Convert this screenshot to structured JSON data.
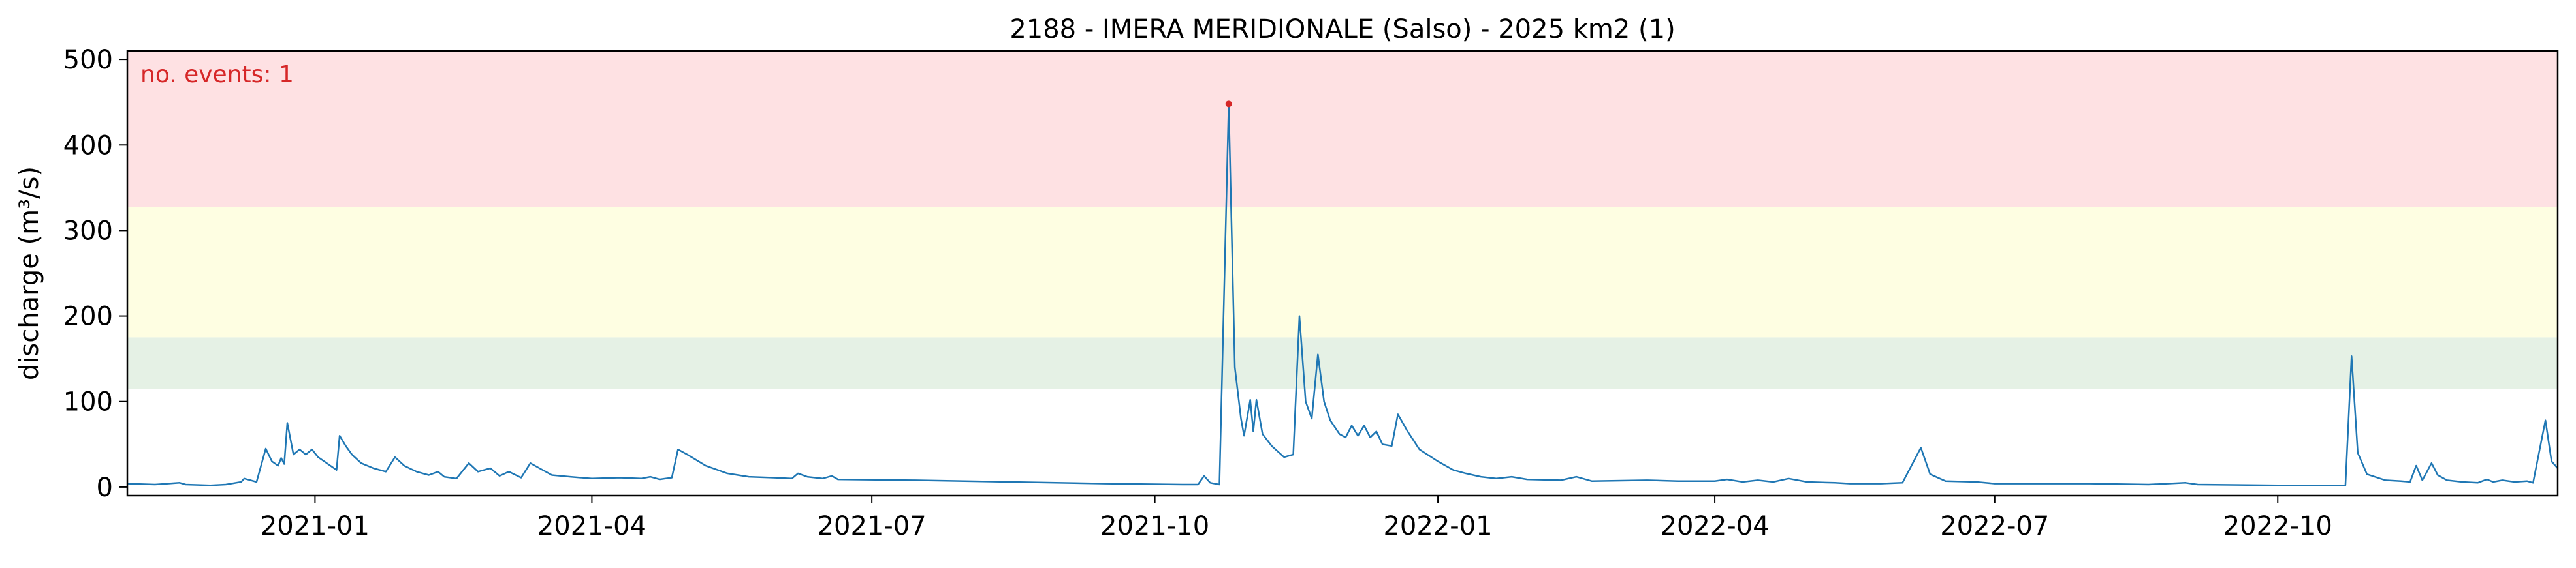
{
  "chart_data": {
    "type": "line",
    "title": "2188 - IMERA MERIDIONALE (Salso) - 2025 km2 (1)",
    "xlabel": "",
    "ylabel": "discharge (m³/s)",
    "annotation": "no. events: 1",
    "xlim": [
      "2020-11-01",
      "2022-12-31"
    ],
    "ylim": [
      -10,
      510
    ],
    "x_ticks": [
      "2021-01",
      "2021-04",
      "2021-07",
      "2021-10",
      "2022-01",
      "2022-04",
      "2022-07",
      "2022-10"
    ],
    "x_tick_dates": [
      "2021-01-01",
      "2021-04-01",
      "2021-07-01",
      "2021-10-01",
      "2022-01-01",
      "2022-04-01",
      "2022-07-01",
      "2022-10-01"
    ],
    "y_ticks": [
      0,
      100,
      200,
      300,
      400,
      500
    ],
    "bands": [
      {
        "from": 115,
        "to": 175,
        "color": "#e5f1e5"
      },
      {
        "from": 175,
        "to": 327,
        "color": "#fefee2"
      },
      {
        "from": 327,
        "to": 510,
        "color": "#fee1e3"
      }
    ],
    "event_points": [
      {
        "x": "2021-10-25",
        "y": 448
      }
    ],
    "line_color": "#1f77b4",
    "event_color": "#d62728",
    "series": [
      {
        "points": [
          [
            "2020-11-01",
            4
          ],
          [
            "2020-11-10",
            3
          ],
          [
            "2020-11-18",
            5
          ],
          [
            "2020-11-20",
            3
          ],
          [
            "2020-11-28",
            2
          ],
          [
            "2020-12-03",
            3
          ],
          [
            "2020-12-08",
            6
          ],
          [
            "2020-12-09",
            10
          ],
          [
            "2020-12-13",
            6
          ],
          [
            "2020-12-16",
            45
          ],
          [
            "2020-12-18",
            30
          ],
          [
            "2020-12-20",
            25
          ],
          [
            "2020-12-21",
            34
          ],
          [
            "2020-12-22",
            27
          ],
          [
            "2020-12-23",
            75
          ],
          [
            "2020-12-25",
            38
          ],
          [
            "2020-12-27",
            44
          ],
          [
            "2020-12-29",
            38
          ],
          [
            "2020-12-31",
            44
          ],
          [
            "2021-01-02",
            35
          ],
          [
            "2021-01-04",
            30
          ],
          [
            "2021-01-06",
            25
          ],
          [
            "2021-01-08",
            20
          ],
          [
            "2021-01-09",
            60
          ],
          [
            "2021-01-11",
            48
          ],
          [
            "2021-01-13",
            38
          ],
          [
            "2021-01-16",
            28
          ],
          [
            "2021-01-20",
            22
          ],
          [
            "2021-01-24",
            18
          ],
          [
            "2021-01-27",
            35
          ],
          [
            "2021-01-30",
            25
          ],
          [
            "2021-02-03",
            18
          ],
          [
            "2021-02-07",
            14
          ],
          [
            "2021-02-10",
            18
          ],
          [
            "2021-02-12",
            12
          ],
          [
            "2021-02-16",
            10
          ],
          [
            "2021-02-20",
            28
          ],
          [
            "2021-02-23",
            18
          ],
          [
            "2021-02-27",
            22
          ],
          [
            "2021-03-02",
            13
          ],
          [
            "2021-03-05",
            18
          ],
          [
            "2021-03-09",
            11
          ],
          [
            "2021-03-12",
            28
          ],
          [
            "2021-03-16",
            20
          ],
          [
            "2021-03-19",
            14
          ],
          [
            "2021-03-25",
            12
          ],
          [
            "2021-04-01",
            10
          ],
          [
            "2021-04-10",
            11
          ],
          [
            "2021-04-17",
            10
          ],
          [
            "2021-04-20",
            12
          ],
          [
            "2021-04-23",
            9
          ],
          [
            "2021-04-27",
            11
          ],
          [
            "2021-04-29",
            44
          ],
          [
            "2021-05-02",
            38
          ],
          [
            "2021-05-08",
            25
          ],
          [
            "2021-05-15",
            16
          ],
          [
            "2021-05-22",
            12
          ],
          [
            "2021-05-30",
            11
          ],
          [
            "2021-06-05",
            10
          ],
          [
            "2021-06-07",
            16
          ],
          [
            "2021-06-10",
            12
          ],
          [
            "2021-06-15",
            10
          ],
          [
            "2021-06-18",
            13
          ],
          [
            "2021-06-20",
            9
          ],
          [
            "2021-07-15",
            8
          ],
          [
            "2021-08-15",
            6
          ],
          [
            "2021-09-15",
            4
          ],
          [
            "2021-10-10",
            3
          ],
          [
            "2021-10-15",
            3
          ],
          [
            "2021-10-17",
            13
          ],
          [
            "2021-10-19",
            5
          ],
          [
            "2021-10-22",
            3
          ],
          [
            "2021-10-25",
            448
          ],
          [
            "2021-10-27",
            140
          ],
          [
            "2021-10-29",
            80
          ],
          [
            "2021-10-30",
            60
          ],
          [
            "2021-11-01",
            102
          ],
          [
            "2021-11-02",
            65
          ],
          [
            "2021-11-03",
            102
          ],
          [
            "2021-11-05",
            62
          ],
          [
            "2021-11-08",
            48
          ],
          [
            "2021-11-12",
            35
          ],
          [
            "2021-11-15",
            38
          ],
          [
            "2021-11-17",
            200
          ],
          [
            "2021-11-19",
            100
          ],
          [
            "2021-11-21",
            80
          ],
          [
            "2021-11-23",
            155
          ],
          [
            "2021-11-25",
            100
          ],
          [
            "2021-11-27",
            78
          ],
          [
            "2021-11-30",
            62
          ],
          [
            "2021-12-02",
            58
          ],
          [
            "2021-12-04",
            72
          ],
          [
            "2021-12-06",
            60
          ],
          [
            "2021-12-08",
            72
          ],
          [
            "2021-12-10",
            58
          ],
          [
            "2021-12-12",
            65
          ],
          [
            "2021-12-14",
            50
          ],
          [
            "2021-12-17",
            48
          ],
          [
            "2021-12-19",
            85
          ],
          [
            "2021-12-22",
            66
          ],
          [
            "2021-12-26",
            44
          ],
          [
            "2022-01-01",
            30
          ],
          [
            "2022-01-06",
            20
          ],
          [
            "2022-01-10",
            16
          ],
          [
            "2022-01-15",
            12
          ],
          [
            "2022-01-20",
            10
          ],
          [
            "2022-01-25",
            12
          ],
          [
            "2022-01-30",
            9
          ],
          [
            "2022-02-10",
            8
          ],
          [
            "2022-02-15",
            12
          ],
          [
            "2022-02-20",
            7
          ],
          [
            "2022-03-10",
            8
          ],
          [
            "2022-03-20",
            7
          ],
          [
            "2022-04-01",
            7
          ],
          [
            "2022-04-05",
            9
          ],
          [
            "2022-04-10",
            6
          ],
          [
            "2022-04-15",
            8
          ],
          [
            "2022-04-20",
            6
          ],
          [
            "2022-04-25",
            10
          ],
          [
            "2022-05-01",
            6
          ],
          [
            "2022-05-10",
            5
          ],
          [
            "2022-05-15",
            4
          ],
          [
            "2022-05-25",
            4
          ],
          [
            "2022-06-01",
            5
          ],
          [
            "2022-06-07",
            46
          ],
          [
            "2022-06-10",
            15
          ],
          [
            "2022-06-15",
            7
          ],
          [
            "2022-06-25",
            6
          ],
          [
            "2022-07-01",
            4
          ],
          [
            "2022-08-01",
            4
          ],
          [
            "2022-08-20",
            3
          ],
          [
            "2022-09-01",
            5
          ],
          [
            "2022-09-05",
            3
          ],
          [
            "2022-10-01",
            2
          ],
          [
            "2022-10-10",
            2
          ],
          [
            "2022-10-23",
            2
          ],
          [
            "2022-10-25",
            153
          ],
          [
            "2022-10-27",
            40
          ],
          [
            "2022-10-30",
            15
          ],
          [
            "2022-11-05",
            8
          ],
          [
            "2022-11-10",
            7
          ],
          [
            "2022-11-13",
            6
          ],
          [
            "2022-11-15",
            25
          ],
          [
            "2022-11-17",
            8
          ],
          [
            "2022-11-20",
            28
          ],
          [
            "2022-11-22",
            14
          ],
          [
            "2022-11-25",
            8
          ],
          [
            "2022-11-30",
            6
          ],
          [
            "2022-12-05",
            5
          ],
          [
            "2022-12-08",
            9
          ],
          [
            "2022-12-10",
            6
          ],
          [
            "2022-12-13",
            8
          ],
          [
            "2022-12-17",
            6
          ],
          [
            "2022-12-21",
            7
          ],
          [
            "2022-12-23",
            5
          ],
          [
            "2022-12-27",
            78
          ],
          [
            "2022-12-29",
            30
          ],
          [
            "2022-12-31",
            22
          ]
        ]
      }
    ]
  }
}
